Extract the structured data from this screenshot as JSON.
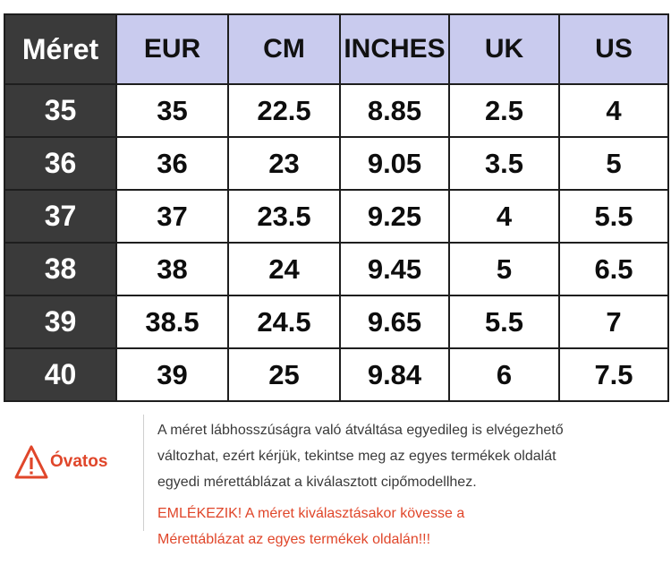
{
  "table": {
    "headers": [
      "Méret",
      "EUR",
      "CM",
      "INCHES",
      "UK",
      "US"
    ],
    "rows": [
      [
        "35",
        "35",
        "22.5",
        "8.85",
        "2.5",
        "4"
      ],
      [
        "36",
        "36",
        "23",
        "9.05",
        "3.5",
        "5"
      ],
      [
        "37",
        "37",
        "23.5",
        "9.25",
        "4",
        "5.5"
      ],
      [
        "38",
        "38",
        "24",
        "9.45",
        "5",
        "6.5"
      ],
      [
        "39",
        "38.5",
        "24.5",
        "9.65",
        "5.5",
        "7"
      ],
      [
        "40",
        "39",
        "25",
        "9.84",
        "6",
        "7.5"
      ]
    ]
  },
  "caution": {
    "label": "Óvatos",
    "icon": "warning-triangle-icon",
    "color": "#e0462a"
  },
  "notice": {
    "lines": [
      "A méret lábhosszúságra való átváltása egyedileg is elvégezhető",
      "változhat, ezért kérjük, tekintse meg az egyes termékek oldalát",
      "egyedi mérettáblázat a kiválasztott cipőmodellhez."
    ],
    "warning_lines": [
      "EMLÉKEZIK! A méret kiválasztásakor kövesse a",
      "Mérettáblázat az egyes termékek oldalán!!!"
    ]
  },
  "colors": {
    "header_bg": "#c9cbee",
    "first_col_bg": "#3a3a3a",
    "warning_text": "#e0462a"
  }
}
